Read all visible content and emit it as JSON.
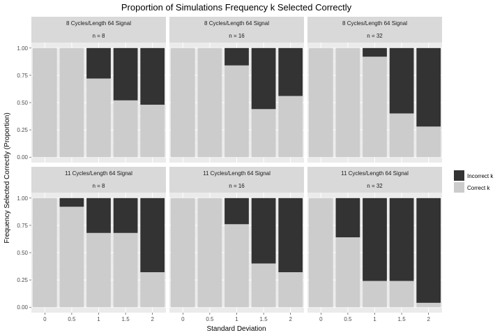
{
  "chart_data": {
    "type": "bar",
    "subtype": "stacked-proportion",
    "title": "Proportion of Simulations Frequency k Selected Correctly",
    "xlabel": "Standard Deviation",
    "ylabel": "Frequency Selected Correctly (Proportion)",
    "categories": [
      "0",
      "0.5",
      "1",
      "1.5",
      "2"
    ],
    "ylim": [
      0,
      1
    ],
    "yticks": [
      "0.00",
      "0.25",
      "0.50",
      "0.75",
      "1.00"
    ],
    "legend": {
      "position": "right",
      "entries": [
        {
          "name": "Incorrect k",
          "color": "#333333"
        },
        {
          "name": "Correct k",
          "color": "#cccccc"
        }
      ]
    },
    "panels": [
      {
        "strip_top": "8 Cycles/Length 64 Signal",
        "strip_bottom": "n = 8",
        "correct": [
          1.0,
          1.0,
          0.72,
          0.52,
          0.48
        ]
      },
      {
        "strip_top": "8 Cycles/Length 64 Signal",
        "strip_bottom": "n = 16",
        "correct": [
          1.0,
          1.0,
          0.84,
          0.44,
          0.56
        ]
      },
      {
        "strip_top": "8 Cycles/Length 64 Signal",
        "strip_bottom": "n = 32",
        "correct": [
          1.0,
          1.0,
          0.92,
          0.4,
          0.28
        ]
      },
      {
        "strip_top": "11 Cycles/Length 64 Signal",
        "strip_bottom": "n = 8",
        "correct": [
          1.0,
          0.92,
          0.68,
          0.68,
          0.32
        ]
      },
      {
        "strip_top": "11 Cycles/Length 64 Signal",
        "strip_bottom": "n = 16",
        "correct": [
          1.0,
          1.0,
          0.76,
          0.4,
          0.32
        ]
      },
      {
        "strip_top": "11 Cycles/Length 64 Signal",
        "strip_bottom": "n = 32",
        "correct": [
          1.0,
          0.64,
          0.24,
          0.24,
          0.04
        ]
      }
    ]
  }
}
